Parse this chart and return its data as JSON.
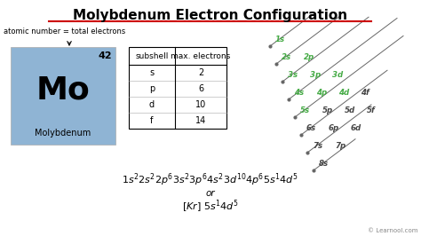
{
  "title": "Molybdenum Electron Configuration",
  "title_underline_color": "#cc0000",
  "background_color": "#ffffff",
  "element_symbol": "Mo",
  "element_name": "Molybdenum",
  "atomic_number": "42",
  "element_box_color": "#8fb4d4",
  "atomic_label": "atomic number = total electrons",
  "table_headers": [
    "subshell",
    "max. electrons"
  ],
  "table_rows": [
    [
      "s",
      "2"
    ],
    [
      "p",
      "6"
    ],
    [
      "d",
      "10"
    ],
    [
      "f",
      "14"
    ]
  ],
  "config_or": "or",
  "learnool_text": "© Learnool.com",
  "green_color": "#44aa44",
  "dark_color": "#444444",
  "diagonal_entries": [
    {
      "row": 1,
      "cols": [
        "1s"
      ],
      "green": [
        true
      ]
    },
    {
      "row": 2,
      "cols": [
        "2s",
        "2p"
      ],
      "green": [
        true,
        true
      ]
    },
    {
      "row": 3,
      "cols": [
        "3s",
        "3p",
        "3d"
      ],
      "green": [
        true,
        true,
        true
      ]
    },
    {
      "row": 4,
      "cols": [
        "4s",
        "4p",
        "4d",
        "4f"
      ],
      "green": [
        true,
        true,
        true,
        false
      ]
    },
    {
      "row": 5,
      "cols": [
        "5s",
        "5p",
        "5d",
        "5f"
      ],
      "green": [
        true,
        false,
        false,
        false
      ]
    },
    {
      "row": 6,
      "cols": [
        "6s",
        "6p",
        "6d"
      ],
      "green": [
        false,
        false,
        false
      ]
    },
    {
      "row": 7,
      "cols": [
        "7s",
        "7p"
      ],
      "green": [
        false,
        false
      ]
    },
    {
      "row": 8,
      "cols": [
        "8s"
      ],
      "green": [
        false
      ]
    }
  ]
}
